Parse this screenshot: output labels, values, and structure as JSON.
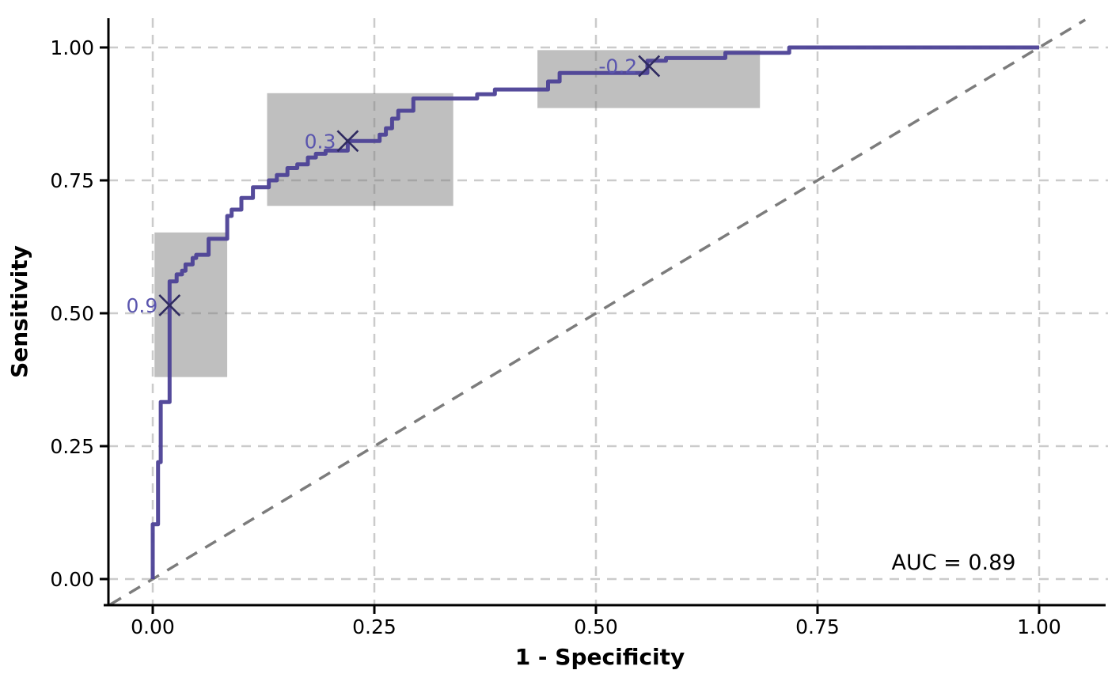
{
  "chart_data": {
    "type": "line",
    "subtype": "roc-curve-step",
    "title": "",
    "xlabel": "1 - Specificity",
    "ylabel": "Sensitivity",
    "xlim": [
      -0.05,
      1.07
    ],
    "ylim": [
      -0.05,
      1.05
    ],
    "grid": "dashed",
    "xticks": [
      0,
      0.25,
      0.5,
      0.75,
      1.0
    ],
    "xtick_labels": [
      "0.00",
      "0.25",
      "0.50",
      "0.75",
      "1.00"
    ],
    "yticks": [
      0,
      0.25,
      0.5,
      0.75,
      1.0
    ],
    "ytick_labels": [
      "0.00",
      "0.25",
      "0.50",
      "0.75",
      "1.00"
    ],
    "annotation": {
      "text": "AUC = 0.89",
      "x": 0.904,
      "y": 0.031
    },
    "diagonal": {
      "from": [
        -0.048,
        -0.048
      ],
      "to": [
        1.052,
        1.052
      ],
      "color": "#7c7c7c",
      "style": "dashed"
    },
    "roc_curve": {
      "color": "#4c4196",
      "points": [
        [
          0.0,
          0.0
        ],
        [
          0.0,
          0.103
        ],
        [
          0.006,
          0.103
        ],
        [
          0.006,
          0.22
        ],
        [
          0.009,
          0.22
        ],
        [
          0.009,
          0.333
        ],
        [
          0.019,
          0.333
        ],
        [
          0.019,
          0.56
        ],
        [
          0.027,
          0.56
        ],
        [
          0.027,
          0.573
        ],
        [
          0.033,
          0.573
        ],
        [
          0.033,
          0.58
        ],
        [
          0.037,
          0.58
        ],
        [
          0.037,
          0.592
        ],
        [
          0.045,
          0.592
        ],
        [
          0.045,
          0.604
        ],
        [
          0.049,
          0.604
        ],
        [
          0.049,
          0.61
        ],
        [
          0.063,
          0.61
        ],
        [
          0.063,
          0.64
        ],
        [
          0.084,
          0.64
        ],
        [
          0.084,
          0.683
        ],
        [
          0.089,
          0.683
        ],
        [
          0.089,
          0.695
        ],
        [
          0.1,
          0.695
        ],
        [
          0.1,
          0.717
        ],
        [
          0.113,
          0.717
        ],
        [
          0.113,
          0.737
        ],
        [
          0.131,
          0.737
        ],
        [
          0.131,
          0.75
        ],
        [
          0.14,
          0.75
        ],
        [
          0.14,
          0.76
        ],
        [
          0.152,
          0.76
        ],
        [
          0.152,
          0.773
        ],
        [
          0.163,
          0.773
        ],
        [
          0.163,
          0.78
        ],
        [
          0.175,
          0.78
        ],
        [
          0.175,
          0.793
        ],
        [
          0.184,
          0.793
        ],
        [
          0.184,
          0.8
        ],
        [
          0.195,
          0.8
        ],
        [
          0.195,
          0.806
        ],
        [
          0.22,
          0.806
        ],
        [
          0.22,
          0.824
        ],
        [
          0.256,
          0.824
        ],
        [
          0.256,
          0.836
        ],
        [
          0.263,
          0.836
        ],
        [
          0.263,
          0.848
        ],
        [
          0.27,
          0.848
        ],
        [
          0.27,
          0.866
        ],
        [
          0.277,
          0.866
        ],
        [
          0.277,
          0.881
        ],
        [
          0.294,
          0.881
        ],
        [
          0.294,
          0.904
        ],
        [
          0.366,
          0.904
        ],
        [
          0.366,
          0.912
        ],
        [
          0.386,
          0.912
        ],
        [
          0.386,
          0.921
        ],
        [
          0.446,
          0.921
        ],
        [
          0.446,
          0.936
        ],
        [
          0.459,
          0.936
        ],
        [
          0.459,
          0.952
        ],
        [
          0.558,
          0.952
        ],
        [
          0.558,
          0.975
        ],
        [
          0.579,
          0.975
        ],
        [
          0.579,
          0.98
        ],
        [
          0.646,
          0.98
        ],
        [
          0.646,
          0.99
        ],
        [
          0.718,
          0.99
        ],
        [
          0.718,
          1.0
        ],
        [
          1.0,
          1.0
        ]
      ]
    },
    "cutpoints": [
      {
        "label": "0.9",
        "x": 0.019,
        "y": 0.515,
        "ci_box": {
          "x0": 0.002,
          "x1": 0.084,
          "y0": 0.38,
          "y1": 0.652
        }
      },
      {
        "label": "0.3",
        "x": 0.22,
        "y": 0.824,
        "ci_box": {
          "x0": 0.129,
          "x1": 0.339,
          "y0": 0.702,
          "y1": 0.914
        }
      },
      {
        "label": "-0.2",
        "x": 0.56,
        "y": 0.965,
        "ci_box": {
          "x0": 0.434,
          "x1": 0.685,
          "y0": 0.886,
          "y1": 0.995
        }
      }
    ],
    "colors": {
      "curve": "#4c4196",
      "marker": "#2f2a60",
      "cut_label": "#5a55ae",
      "ci_box_fill": "#7f7f7f",
      "gridline": "#cbcbcb",
      "diagonal": "#7c7c7c",
      "axis": "#000000"
    }
  }
}
